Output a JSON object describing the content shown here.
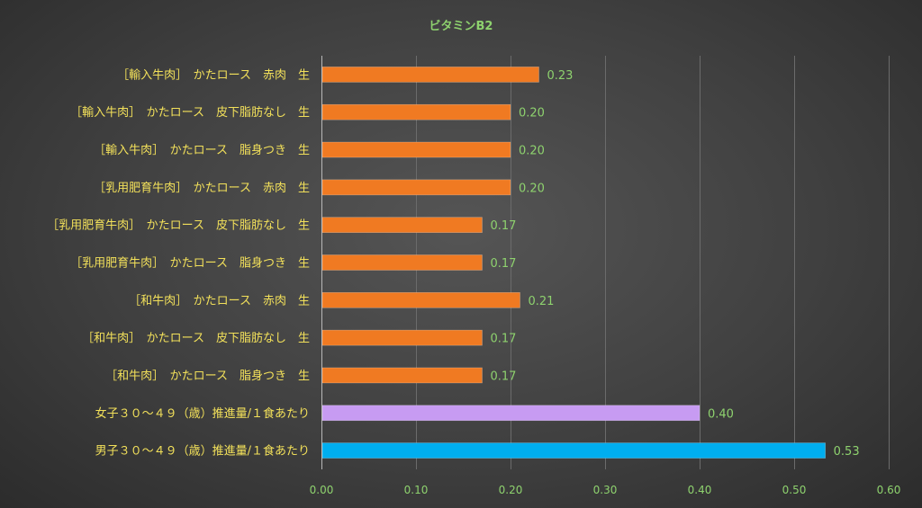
{
  "chart_data": {
    "type": "bar",
    "orientation": "horizontal",
    "title": "ビタミンB2",
    "xlim": [
      0,
      0.6
    ],
    "x_ticks": [
      "0.00",
      "0.10",
      "0.20",
      "0.30",
      "0.40",
      "0.50",
      "0.60"
    ],
    "grid": true,
    "categories": [
      "［輸入牛肉］　かたロース　赤肉　生",
      "［輸入牛肉］　かたロース　皮下脂肪なし　生",
      "［輸入牛肉］　かたロース　脂身つき　生",
      "［乳用肥育牛肉］　かたロース　赤肉　生",
      "［乳用肥育牛肉］　かたロース　皮下脂肪なし　生",
      "［乳用肥育牛肉］　かたロース　脂身つき　生",
      "［和牛肉］　かたロース　赤肉　生",
      "［和牛肉］　かたロース　皮下脂肪なし　生",
      "［和牛肉］　かたロース　脂身つき　生",
      "女子３０～４９（歳）推進量/１食あたり",
      "男子３０～４９（歳）推進量/１食あたり"
    ],
    "values": [
      0.23,
      0.2,
      0.2,
      0.2,
      0.17,
      0.17,
      0.21,
      0.17,
      0.17,
      0.4,
      0.533
    ],
    "value_labels": [
      "0.23",
      "0.20",
      "0.20",
      "0.20",
      "0.17",
      "0.17",
      "0.21",
      "0.17",
      "0.17",
      "0.40",
      "0.53"
    ],
    "colors": [
      "#F07A22",
      "#F07A22",
      "#F07A22",
      "#F07A22",
      "#F07A22",
      "#F07A22",
      "#F07A22",
      "#F07A22",
      "#F07A22",
      "#C79BF2",
      "#00AEEF"
    ]
  }
}
